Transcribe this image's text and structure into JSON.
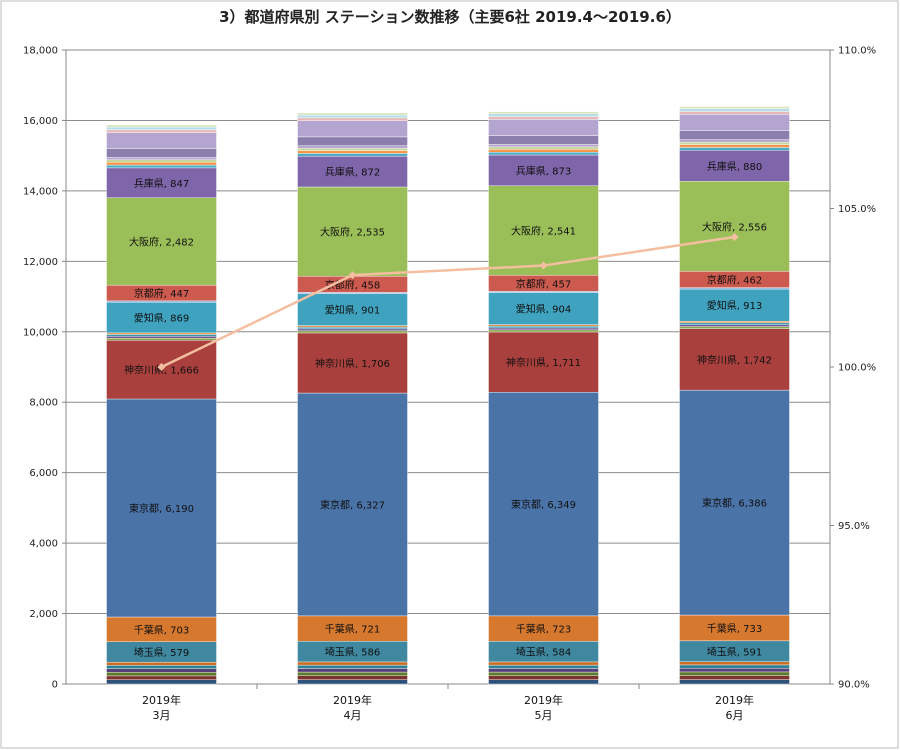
{
  "chart_data": {
    "type": "bar",
    "stacked": true,
    "title": "3）都道府県別 ステーション数推移（主要6社 2019.4～2019.6）",
    "categories": [
      [
        "2019年",
        "3月"
      ],
      [
        "2019年",
        "4月"
      ],
      [
        "2019年",
        "5月"
      ],
      [
        "2019年",
        "6月"
      ]
    ],
    "y_left": {
      "ylim": [
        0,
        18000
      ],
      "ticks": [
        "0",
        "2,000",
        "4,000",
        "6,000",
        "8,000",
        "10,000",
        "12,000",
        "14,000",
        "16,000",
        "18,000"
      ]
    },
    "y_right": {
      "ylim": [
        90.0,
        110.0
      ],
      "ticks": [
        "90.0%",
        "95.0%",
        "100.0%",
        "105.0%",
        "110.0%"
      ]
    },
    "grid": true,
    "legend": "none",
    "series": [
      {
        "values": [
          120,
          122,
          122,
          124
        ],
        "color": "#2e5179"
      },
      {
        "values": [
          110,
          111,
          111,
          112
        ],
        "color": "#7e3331"
      },
      {
        "values": [
          105,
          106,
          106,
          107
        ],
        "color": "#5f7a2f"
      },
      {
        "values": [
          100,
          101,
          101,
          102
        ],
        "color": "#55407a"
      },
      {
        "values": [
          95,
          96,
          96,
          97
        ],
        "color": "#2f8296"
      },
      {
        "values": [
          90,
          91,
          91,
          92
        ],
        "color": "#cc6d24"
      },
      {
        "name": "埼玉県",
        "values": [
          579,
          586,
          584,
          591
        ],
        "color": "#3f88a0",
        "label": "埼玉県"
      },
      {
        "name": "千葉県",
        "values": [
          703,
          721,
          723,
          733
        ],
        "color": "#d6782d",
        "label": "千葉県"
      },
      {
        "name": "東京都",
        "values": [
          6190,
          6327,
          6349,
          6386
        ],
        "color": "#4a73a8",
        "label": "東京都"
      },
      {
        "name": "神奈川県",
        "values": [
          1666,
          1706,
          1711,
          1742
        ],
        "color": "#a9403d",
        "label": "神奈川県"
      },
      {
        "values": [
          60,
          60,
          60,
          61
        ],
        "color": "#86a848"
      },
      {
        "values": [
          55,
          55,
          55,
          56
        ],
        "color": "#6e5597"
      },
      {
        "values": [
          50,
          50,
          50,
          51
        ],
        "color": "#3597b0"
      },
      {
        "values": [
          45,
          45,
          45,
          46
        ],
        "color": "#e58a3f"
      },
      {
        "name": "愛知県",
        "values": [
          869,
          901,
          904,
          913
        ],
        "color": "#3fa3c0",
        "label": "愛知県"
      },
      {
        "values": [
          40,
          40,
          40,
          41
        ],
        "color": "#93b5de"
      },
      {
        "name": "京都府",
        "values": [
          447,
          458,
          457,
          462
        ],
        "color": "#cc5a4e",
        "label": "京都府"
      },
      {
        "name": "大阪府",
        "values": [
          2482,
          2535,
          2541,
          2556
        ],
        "color": "#9bbf58",
        "label": "大阪府"
      },
      {
        "name": "兵庫県",
        "values": [
          847,
          872,
          873,
          880
        ],
        "color": "#7f65a9",
        "label": "兵庫県"
      },
      {
        "values": [
          80,
          80,
          80,
          81
        ],
        "color": "#4bacc6"
      },
      {
        "values": [
          80,
          80,
          80,
          81
        ],
        "color": "#f79646"
      },
      {
        "values": [
          70,
          70,
          70,
          71
        ],
        "color": "#c3d69b"
      },
      {
        "values": [
          70,
          70,
          70,
          71
        ],
        "color": "#b6a6cf"
      },
      {
        "values": [
          250,
          250,
          250,
          252
        ],
        "color": "#8c7fae"
      },
      {
        "values": [
          450,
          460,
          460,
          465
        ],
        "color": "#b3a5cf"
      },
      {
        "values": [
          80,
          80,
          80,
          81
        ],
        "color": "#e6b9b8"
      },
      {
        "values": [
          80,
          80,
          80,
          81
        ],
        "color": "#b7dee8"
      },
      {
        "values": [
          60,
          60,
          60,
          61
        ],
        "color": "#d7e4bd"
      }
    ],
    "line_series": {
      "axis": "right",
      "color": "#f4bfa0",
      "values": [
        100.0,
        102.9,
        103.2,
        104.1
      ]
    }
  }
}
